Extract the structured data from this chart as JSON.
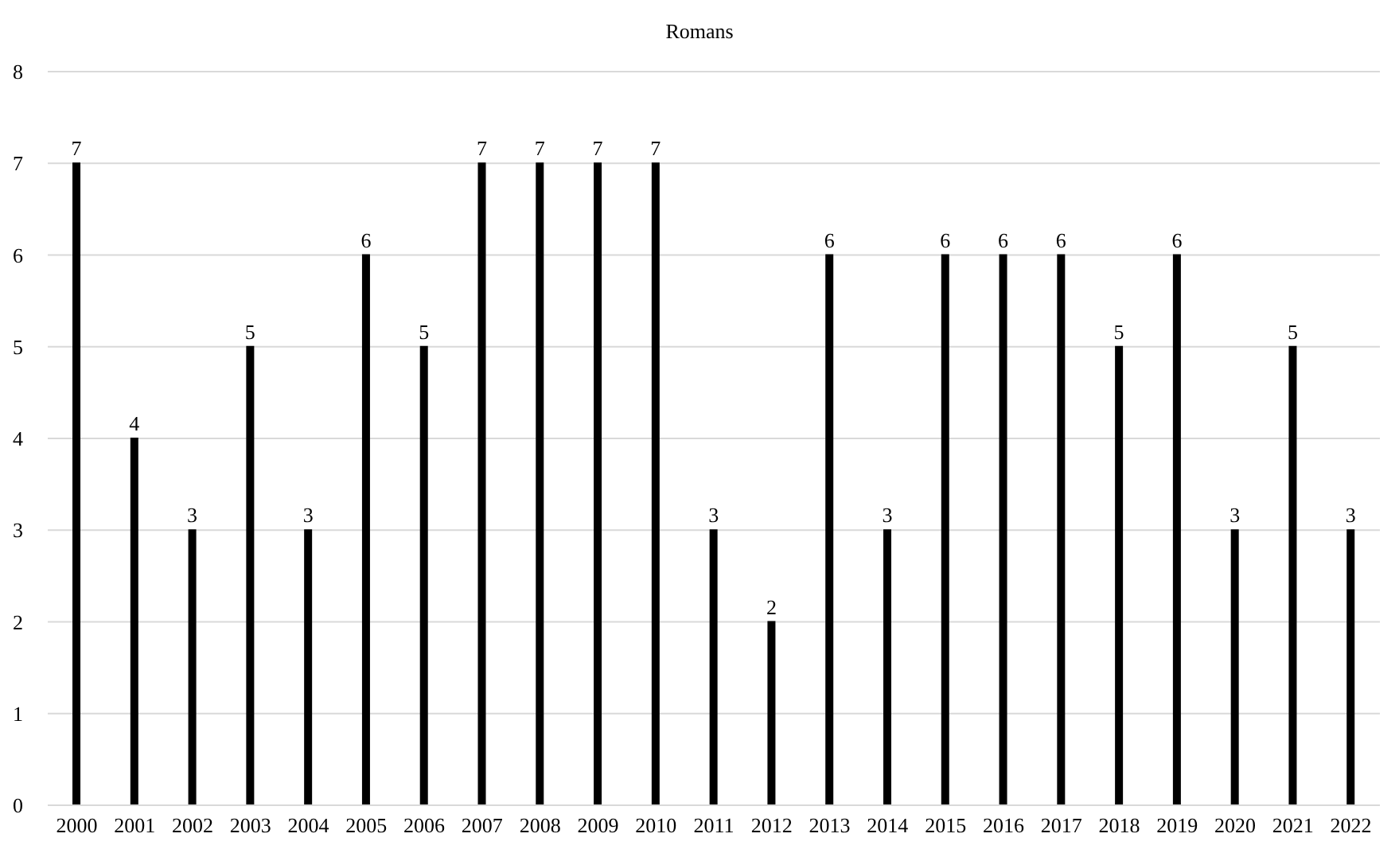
{
  "chart_data": {
    "type": "bar",
    "title": "Romans",
    "categories": [
      "2000",
      "2001",
      "2002",
      "2003",
      "2004",
      "2005",
      "2006",
      "2007",
      "2008",
      "2009",
      "2010",
      "2011",
      "2012",
      "2013",
      "2014",
      "2015",
      "2016",
      "2017",
      "2018",
      "2019",
      "2020",
      "2021",
      "2022"
    ],
    "values": [
      7,
      4,
      3,
      5,
      3,
      6,
      5,
      7,
      7,
      7,
      7,
      3,
      2,
      6,
      3,
      6,
      6,
      6,
      5,
      6,
      3,
      5,
      3
    ],
    "color": "#000000",
    "ylim": [
      0,
      8
    ],
    "yticks": [
      0,
      1,
      2,
      3,
      4,
      5,
      6,
      7,
      8
    ],
    "grid": "y",
    "data_labels": true
  }
}
